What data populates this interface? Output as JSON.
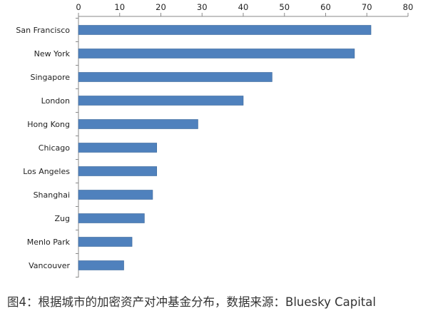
{
  "chart_data": {
    "type": "bar",
    "orientation": "horizontal",
    "categories": [
      "San Francisco",
      "New York",
      "Singapore",
      "London",
      "Hong Kong",
      "Chicago",
      "Los Angeles",
      "Shanghai",
      "Zug",
      "Menlo Park",
      "Vancouver"
    ],
    "values": [
      71,
      67,
      47,
      40,
      29,
      19,
      19,
      18,
      16,
      13,
      11
    ],
    "xlim": [
      0,
      80
    ],
    "x_ticks": [
      0,
      10,
      20,
      30,
      40,
      50,
      60,
      70,
      80
    ],
    "x_axis_position": "top",
    "grid": false,
    "legend": "none",
    "bar_color": "#4f81bd",
    "bar_border_color": "#3a6699",
    "axis_color": "#8a8a8a"
  },
  "caption": "图4：根据城市的加密资产对冲基金分布，数据来源：Bluesky Capital"
}
